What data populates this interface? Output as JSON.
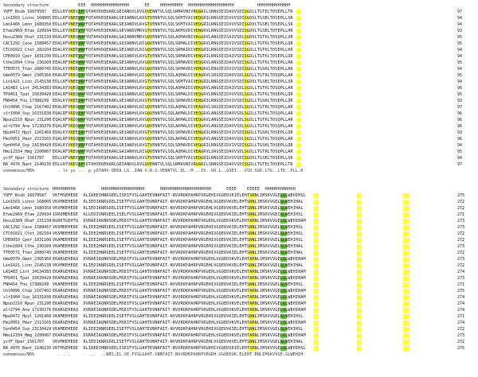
{
  "block1": {
    "ss_label": "Secondary structure",
    "ss_line": "          EEE  HHHHHHHHHHHHHHH      EE    HHHHHHHHH  HHHHHHHHHHHHHHHHHH         HHHHHHHHHHHHH",
    "rows": [
      {
        "name": "YQFF_Bsub_16079587",
        "seq": "EDLLRYVKEVIPYQTAHVDQEKARLGEIANDVLRVGQVENNTVLSQLSRMAVNIVRGGRILSRNGSEIDAVVSDISGDLLTGTELTDSEPLLTR",
        "num": "97"
      },
      {
        "name": "Lin1503_Linno_16800571",
        "seq": "EDLLKFVNEEVRPFQTAHVEQEKARLGEIANNVLRVGTVENNTVLSQLSKMTVAIVEDGRILRNGSEIDVVVSDISGDVLTGSELTDSEPLLSR",
        "num": "94"
      },
      {
        "name": "Lmo1466_Lmon_16803506",
        "seq": "EDLLKFVNEEVRPFQTAHVEQEKARLGEIANDVLRVGTVENNTVLSQLSKMTVAIVEDGRILRNGSEIDVVVSDISGDVLTGSELTDSEPLLSR",
        "num": "94"
      },
      {
        "name": "Efae2969_Efae_22993455",
        "seq": "EDLLKYVKEEVTPYQTAHVEQEKAKLGEVANDVMRVGTVENNTVLTQLAKMSVDIVENGRVLRNGSEIDVVVSDISGDVLTGSELTDTEPLLHR",
        "num": "93"
      },
      {
        "name": "Desu2389_Dhaf_23113918",
        "seq": "EKALKFVREQMAPYQTAHVDQEKARLGAIANNVMRVGQVENNTVLSQLAQMAVNIVAGGRVLANGSEISAIVSDLSGDVLTGTKLTDSQPLLVR",
        "num": "95"
      },
      {
        "name": "CAC1292_Cace_15894574",
        "seq": "EDALKFVREEVRPYQTAHVEQEKAKLGQIANNVLRIGQVENNTVLSQLSRMALDIVEQGRVLRNGSEIDVIVSDISGDLLTGTKLTDSEPLLQR",
        "num": "95"
      },
      {
        "name": "CTC01021_Ctet_28210497",
        "seq": "EDALRYVKEEVRPFQTAHVDQEKARLGEIANDVLRIGQVENNTVLSQLSRMAIDIVEKGRILRNGSEIDVIVSDISGDLLTGTKLTDSEPLLKR",
        "num": "94"
      },
      {
        "name": "CPE0919_Cper_18311001",
        "seq": "EDLLKYVKEEVLPYQTAHVEQEKAKLGQIANDVLRVGTVENNTVLSQLSRMAVDIVENGRILRNGSEIDAIVSDISGDLLTGTKLTDSEPLLQR",
        "num": "94"
      },
      {
        "name": "Cthe1004_Cthe_23020923",
        "seq": "EEALRFVRENVRPYQTAHVEQEKARLGEIANHVLRVGQVENNTVLSQLSRMAVDIVEQGRVLANGSEIDAVVSDISGDLLTGTKLTDSEPLLRR",
        "num": "95"
      },
      {
        "name": "TTE0571_Tten_20807451",
        "seq": "EDALKYVREEVKPFQTAHVEQEKARLGEIANNVLRVGQVENNTVLSQLSKMAVDIVEHGRVLENGSEIDVIVSDISGDLLTGSKLTDSEPLLRR",
        "num": "94"
      },
      {
        "name": "Gme0579_Gmet_23053661",
        "seq": "EKALRFVREQIRPYQTAHVEQEKARLGAIANHVLRIGQVENNTVLSQLAQMALDIVEAGRVLSRGSEIDAVVSDLSGDLLTGTRLTDSQPLLAR",
        "num": "95"
      },
      {
        "name": "Lin1421_Linn_21451383",
        "seq": "EDLLKFVNEEVRPFQTAHVEQEKARLGEIANNVLRVGTVENNTVLSQLSKMTVAIVEDGRILRNGSEIDVVVSDISGDVLTGSELTDSEPLLSR",
        "num": "94"
      },
      {
        "name": "LA1483_Lint_24134383",
        "seq": "ERALRYVQEQIRPYQTAHVDQEKARLGEIANHVLRVGQVENNTVLSQLAQMAIDIVEKGRVLANGSEIDAIVSDLSGDLLTGTKLTDSQPLLAR",
        "num": "96"
      },
      {
        "name": "TP0451_Tpal_15639429",
        "seq": "EEALRFVREQVRPYQTAHVEQEKARLGQIANNVLRIGQVENNTVLSQLSRMALDIVEQGRVLRNGSEIDVVVSDLSGDLLTGTKLTDSEPLLQR",
        "num": "95"
      },
      {
        "name": "FN0454_Fnu_17388299",
        "seq": "EDALKYVKEEIRPFQTAHVEQEKAKLGEIANDVLRVGTVENNTVLSQLSKMAVDIVENGRILRNGSEIDVIVSDISGDLLTGSKLTDSEPLLQR",
        "num": "93"
      },
      {
        "name": "Chl0096_Ctep_21674026",
        "seq": "EKALRFVREQVRPYQTAHVEQEKARLGAIANHVLRIGQVENNTVLSQLAQMALDIVEAGRVLSRGSEIDAVVSDLSGDLLTGTRLTDSQPLLAR",
        "num": "97"
      },
      {
        "name": "slr1004_Ssp_16331838",
        "seq": "EQALRFVRDQIRPYQTAHVEQEKARLGEIANHVLRVGQVENNTVLSQLAKMALDIVEQGRVLANGSEIDAVVSDLSGDLLTGTKLTDSQPLLAR",
        "num": "96"
      },
      {
        "name": "Npun2210_Npun_23129020",
        "seq": "EQALRFVRDQVRPYQTAHVEQEKARLGEIANHVLRVGQVENNTVLSQLAKMALDIVEQGRVLANGSEIDAVVSDLSGDLLTGTKLTDSQPLLAR",
        "num": "96"
      },
      {
        "name": "alr2794_Ana_17230276",
        "seq": "EQALRFVRDQVRPYQTAHVEQEKARLGEIANHVLRVGQVENNTVLSQLAKMALDIVEQGRVLANGSEIDAVVSDLSGDLLTGTKLTDSQPLLAR",
        "num": "96"
      },
      {
        "name": "Hpu0472_Hpyl_12014698",
        "seq": "EDALKYVKEEIRPFQTAHVEQEKAKLGEIANDVLRVGTVENNTVLSQLSKMAVDIVENGRILRNGSEIDVIVSDISGDLLTGSKLTDSEPLLQR",
        "num": "93"
      },
      {
        "name": "Pmi0951_Pmar_23131657",
        "seq": "EQALRFVRDQIRPYQTAHVEQEKARLGEIANHVLRVGQVENNTVLSQLAKMALDIVEQGRVLANGSEIDAVVSDLSGDLLTGTKLTDSQPLLAR",
        "num": "96"
      },
      {
        "name": "Syn0454_Ssp_23130429",
        "seq": "EDALKYVKEEVRPFQTAHVEQEKARLGEIANDVLRVGTVENNTVLSQLSRMAVDIVEQGRILRNGSEIDVIVSDISGDLLTGSKLTDSEPLLQR",
        "num": "94"
      },
      {
        "name": "Hmu12334_Hmg_22000675",
        "seq": "EKALRFVREQVRPYQTAHVEQEKARLGAIANHVLRIGQVENNTVLSQLAQMALDIVEAGRVLSRGSEIDAVVSDLSGDLLTGTRLTDSQPLLAR",
        "num": "95"
      },
      {
        "name": "ycfF_Opar_1561707",
        "seq": "EDLLKFVNEEVRPFQTAHVEQEKARLGEIANNVLRVGTVENNTVLSQLSKMTVAIVEDGRILRNGSEIDVVVSDISGDVLTGSELTDSEPLLSR",
        "num": "94"
      },
      {
        "name": "BA_4976_Bant_21402351",
        "seq": "EDLLRYVKEVIPYQTAHVDQEKARLGEIANDVLRVGQVENNTVLSQLSRMAVNIVRGGRILSRNGSEIDAVVSDISGDLLTGTELTDSEPLLTR",
        "num": "97"
      }
    ],
    "consensus_label": "consensus/95%",
    "consensus_line": "  . l+ yv ..  p yQTAHV.QEKA.LG .IAN.V.R.G.VENNTVL.QL..M...IV..GR.L..GSEI...VSD.SGD.LTG..LTD..PLL.R"
  },
  "block2": {
    "ss_label": "Secondary structure",
    "ss_line": "HHHHHHHHH          HHHHHHHHHHHHHHHHH      HHHHHHHHHHHHHHHHHHHH      EEEE    EEEEE  HHHHHHHHHHHH",
    "rows": [
      {
        "name": "YQFF_Bsub_16079587",
        "seq": "VKTMSEHEDE  KLIAEEIHNRSEELISEIFVSLGAHTEVNRFAIT-NVVRDKPAHRPVRGEHIVGQEDVKIELEHTSRNLIMSKVVGELGLWEHIHSL",
        "num": "275"
      },
      {
        "name": "Lin1503_Linno_16800571",
        "seq": "VKVMKEHEDE  KLIEDIKNRSDELISETFVSLGAHTDVNRFAIT-NVVRDKPAHRPVRGEHLVGQEDVKVELEHTSRNLIMSKVVGELGLWEHIHAL",
        "num": "272"
      },
      {
        "name": "Lmo1466_Lmon_16803506",
        "seq": "VKVMKEHEDE  KLIEDIKNRSDELISETFVSLGAHTDVNRFAIT-NVVRDKPAHRPVRGEHLVGQEDVKVELEHTSRNLIMSKVVGELGLWEHIHAL",
        "num": "272"
      },
      {
        "name": "Efae2969_Efae_22993455",
        "seq": "IDRQMEKEDE  KLLEDIVNRSEELISELFVSLGAHTEVNRFAIT-NVVRDKPAHRPVRGEHIVGQEDVKIELEHTSRNLIMSKVVGEIGLWEHIHSL",
        "num": "271"
      },
      {
        "name": "Desu2389_Dhaf_23113918",
        "seq": "RGRETGEHTQ  DVRAEIAKNRSDELMSEIFVSLGAHTDVNRFAIT-NVVRDKPAHRPVRGEHLVGQEDVKVELEHTARNLIMSKVVGELGLWEHIHAM",
        "num": "273"
      },
      {
        "name": "CAC1292_Cace_15894574",
        "seq": "VKSMEEHEDE  KLIEEIHNRSEELISETFVSLGAHTEVNRFAIT-NVVRDKPAHRPVRGEHIVGQEDVKIELEHTSRNLIMSKVVGELGLWEHIHSL",
        "num": "273"
      },
      {
        "name": "CTC01021_Ctet_28210497",
        "seq": "VKSMEEHEDE  KLIEEIHNRSEELISETFVSLGAHTEVNRFAIT-NVVRDKPAHRPVRGEHIVGQEDVKIELEHTSRNLIMSKVVGELGLWEHIHSL",
        "num": "272"
      },
      {
        "name": "CPE0919_Cper_18311001",
        "seq": "VKAMEEHEDE  KLIEEIHNRSEELISETFVSLGAHTEVNRFAIT-NVVRDKPAHRPVRGEHIVGQEDVKIELEHTSRNLIMSKVVGELGLWEHIHSL",
        "num": "272"
      },
      {
        "name": "Cthe1004_Cthe_23020923",
        "seq": "VKAMEEHEDE  KLIEEIHNRSEELISETFVSLGAHTEVNRFAIT-NVVRDKPAHRPVRGEHIVGQEDVKIELEHTSRNLIMSKVVGELGLWEHIHAL",
        "num": "273"
      },
      {
        "name": "TTE0571_Tten_20807451",
        "seq": "VKAMEEHEDE  KLIEEIHNRSEELISETFVSLGAHTEVNRFAIT-NVVRDKPAHRPVRGEHIVGQEDVKIELEHTSRNLIMSKVVGELGLWEHIHAL",
        "num": "272"
      },
      {
        "name": "Gme0579_Gmet_23053661",
        "seq": "EKARGEHEAQ  DVRAEIAQNRSDELMSEIFVSLGAHTDVNRFAIT-NVVRDKPAHRPVRGEHLVGQEDVKVELEHTARNLIMSKVVGELGLWEHIHAM",
        "num": "273"
      },
      {
        "name": "Lin1421_Linn_21451383",
        "seq": "VKVMKEHEDE  KLIEDIKNRSDELISETFVSLGAHTDVNRFAIT-NVVRDKPAHRPVRGEHLVGQEDVKVELEHTSRNLIMSKVVGELGLWEHIHAL",
        "num": "272"
      },
      {
        "name": "LA1483_Lint_24134383",
        "seq": "EKARGEHEAQ  DVRAEIAQNRSDELMSEIFVSLGAHTDVNRFAIT-NVVRDKPAHRPVRGEHLVGQEDVKVELEHTARNLIMSKVVGELGLWEHIHAM",
        "num": "274"
      },
      {
        "name": "TP0451_Tpal_15639429",
        "seq": "EKAMGEHEAQ  DVRAEIAKNRSDELMSEIFVSLGAHTDVNRFAIT-NVVRDKPAHRPVRGEHLVGQEDVKVELEHTARNLIMSKVVGELGLWEHIHAM",
        "num": "273"
      },
      {
        "name": "FN0454_Fnu_17388299",
        "seq": "VKAMEEHEDE  KLIEEIHNRSEELISETFVSLGAHTEVNRFAIT-NVVRDKPAHRPVRGEHIVGQEDVKIELEHTSRNLIMSKVVGELGLWEHIHSL",
        "num": "271"
      },
      {
        "name": "Chl0096_Ctep_21674026",
        "seq": "EKARGEHEAQ  DVRAEIAQNRSDELMSEIFVSLGAHTDVNRFAIT-NVVRDKPAHRPVRGEHLVGQEDVKVELEHTARNLIMSKVVGELGLWEHIHAM",
        "num": "275"
      },
      {
        "name": "slr1004_Ssp_16331838",
        "seq": "EKARGEHEAQ  DVRAEIAQNRSDELMSEIFVSLGAHTDVNRFAIT-NVVRDKPAHRPVRGEHLVGQEDVKVELEHTARNLIMSKVVGELGLWEHIHAM",
        "num": "274"
      },
      {
        "name": "Npun2210_Npun_23129020",
        "seq": "EKARGEHEAQ  DVRAEIAQNRSDELMSEIFVSLGAHTDVNRFAIT-NVVRDKPAHRPVRGEHLVGQEDVKVELEHTARNLIMSKVVGELGLWEHIHAM",
        "num": "274"
      },
      {
        "name": "alr2794_Ana_17230276",
        "seq": "EKARGEHEAQ  DVRAEIAQNRSDELMSEIFVSLGAHTDVNRFAIT-NVVRDKPAHRPVRGEHLVGQEDVKVELEHTARNLIMSKVVGELGLWEHIHAM",
        "num": "274"
      },
      {
        "name": "Hpu0472_Hpyl_12014698",
        "seq": "VKAMEEHEDE  KLIEEIHNRSEELISETFVSLGAHTEVNRFAIT-NVVRDKPAHRPVRGEHIVGQEDVKIELEHTSRNLIMSKVVGELGLWEHIHSL",
        "num": "271"
      },
      {
        "name": "Pmi0951_Pmar_23131657",
        "seq": "EKARGEHEAQ  DVRAEIAQNRSDELMSEIFVSLGAHTDVNRFAIT-NVVRDKPAHRPVRGEHLVGQEDVKVELEHTARNLIMSKVVGELGLWEHIHAM",
        "num": "274"
      },
      {
        "name": "Syn0454_Ssp_23130429",
        "seq": "VKAMEEHEDE  KLIEEIHNRSEELISETFVSLGAHTEVNRFAIT-NVVRDKPAHRPVRGEHIVGQEDVKIELEHTSRNLIMSKVVGELGLWEHIHSL",
        "num": "272"
      },
      {
        "name": "Hmu12334_Hmg_22000675",
        "seq": "EKARGEHEAQ  DVRAEIAQNRSDELMSEIFVSLGAHTDVNRFAIT-NVVRDKPAHRPVRGEHLVGQEDVKVELEHTARNLIMSKVVGELGLWEHIHAM",
        "num": "273"
      },
      {
        "name": "ycfF_Opar_1561707",
        "seq": "VKVMKEHEDE  KLIEDIKNRSDELISETFVSLGAHTDVNRFAIT-NVVRDKPAHRPVRGEHLVGQEDVKVELEHTSRNLIMSKVVGELGLWEHIHAL",
        "num": "272"
      },
      {
        "name": "BA_4976_Bant_21402351",
        "seq": "VKTMSEHEDE  KLIAEEIHNRSEELISEIFVSLGAHTEVNRFAIT-NVVRDKPAHRPVRGEHIVGQEDVKIELEHTSRNLIMSKVVGELGLWEHIHSL",
        "num": "275"
      }
    ],
    "consensus_label": "consensus/95%",
    "consensus_line": "  . . .     .  ..  ..NRS.EL.SE.FVSLGAHT.VNRFAIT NVVRDKPAHRPVRGEH.VGQEDVK.ELEHT.RNLIMSKVVGE.GLWEHIH."
  },
  "highlight_colors": {
    "hydrophobic": "#ffff33",
    "conserved": "#66cc33",
    "partial": "#99dd66"
  }
}
